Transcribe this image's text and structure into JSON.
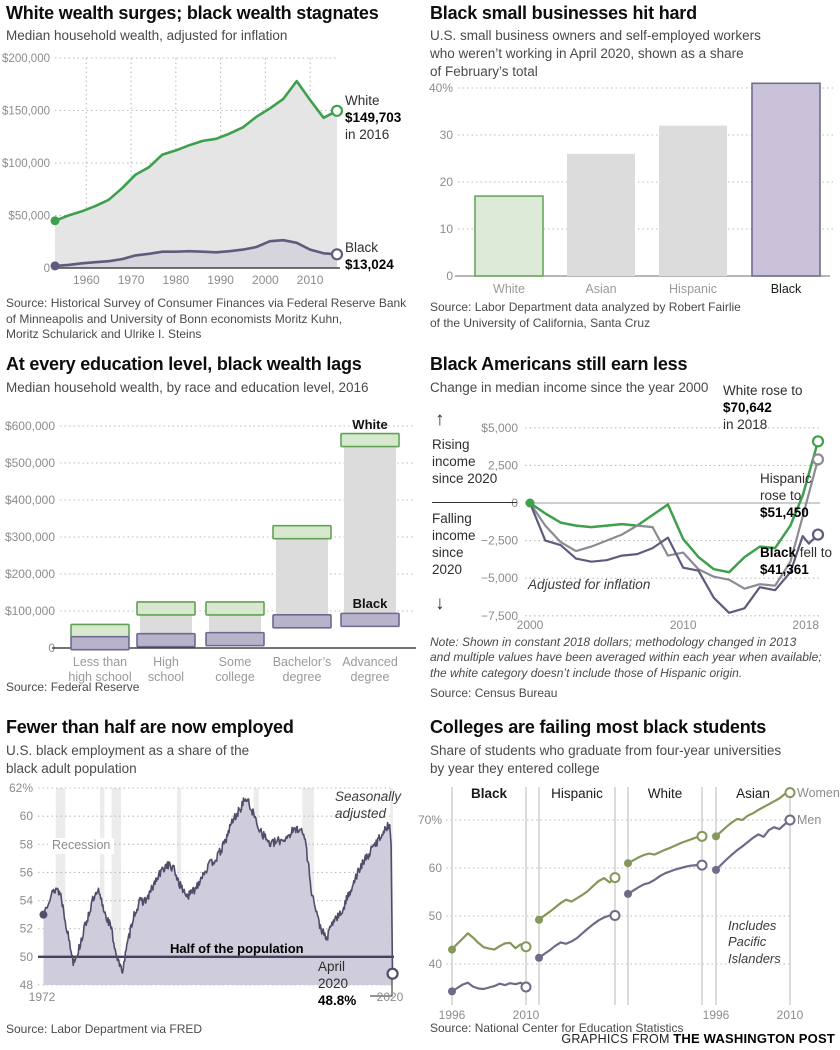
{
  "page": {
    "credit_prefix": "GRAPHICS FROM ",
    "credit_brand": "THE WASHINGTON POST"
  },
  "colors": {
    "green": "#3ea04c",
    "purple": "#5f5b7d",
    "hispanic_gray": "#8b8b94",
    "women_olive": "#85975a",
    "men_purple": "#6f6a87",
    "employment_line": "#514c69",
    "employment_fill": "#cfccdb",
    "grid": "#bdbdbd",
    "tick": "#8c8c8c",
    "bar_gray": "#dcdcdc"
  },
  "chart_data": [
    {
      "id": "wealth-over-time",
      "type": "line",
      "title": "White wealth surges; black wealth stagnates",
      "subtitle": "Median household wealth, adjusted for inflation",
      "source": "Source: Historical Survey of Consumer Finances via Federal Reserve Bank\nof Minneapolis and University of Bonn economists Moritz Kuhn,\nMoritz Schularick and Ulrike I. Steins",
      "xlim": [
        1953,
        2016
      ],
      "ylim": [
        0,
        200000
      ],
      "x_ticks": [
        1960,
        1970,
        1980,
        1990,
        2000,
        2010
      ],
      "y_ticks": [
        {
          "v": 200000,
          "label": "$200,000"
        },
        {
          "v": 150000,
          "label": "$150,000"
        },
        {
          "v": 100000,
          "label": "$100,000"
        },
        {
          "v": 50000,
          "label": "$50,000"
        },
        {
          "v": 0,
          "label": "0"
        }
      ],
      "series": [
        {
          "name": "White",
          "color": "#3ea04c",
          "area": "#e5e5e5",
          "x": [
            1953,
            1956,
            1959,
            1962,
            1965,
            1968,
            1971,
            1974,
            1977,
            1980,
            1983,
            1986,
            1989,
            1992,
            1995,
            1998,
            2001,
            2004,
            2007,
            2010,
            2013,
            2016
          ],
          "y": [
            45000,
            50000,
            54000,
            59000,
            65000,
            76000,
            89000,
            96000,
            108000,
            112000,
            117000,
            121000,
            123000,
            128000,
            134000,
            144000,
            152000,
            161000,
            178000,
            160000,
            143000,
            149703
          ]
        },
        {
          "name": "Black",
          "color": "#5f5b7d",
          "area": "#d6d4dc",
          "x": [
            1953,
            1956,
            1959,
            1962,
            1965,
            1968,
            1971,
            1974,
            1977,
            1980,
            1983,
            1986,
            1989,
            1992,
            1995,
            1998,
            2001,
            2004,
            2007,
            2010,
            2013,
            2016
          ],
          "y": [
            2000,
            3000,
            4500,
            5500,
            6500,
            8500,
            12000,
            13500,
            15500,
            15500,
            16000,
            15500,
            15000,
            16000,
            17500,
            20000,
            25500,
            26500,
            24000,
            17500,
            14000,
            13024
          ]
        }
      ],
      "end_labels": {
        "white": {
          "name": "White",
          "value": "$149,703",
          "suffix": "in 2016"
        },
        "black": {
          "name": "Black",
          "value": "$13,024"
        }
      }
    },
    {
      "id": "small-business",
      "type": "bar",
      "title": "Black small businesses hit hard",
      "subtitle": "U.S. small business owners and self-employed workers\nwho weren’t working in April 2020, shown as a share\nof February’s total",
      "source": "Source: Labor Department data analyzed by Robert Fairlie\nof the University of California, Santa Cruz",
      "ylim": [
        0,
        43
      ],
      "y_ticks": [
        {
          "v": 40,
          "label": "40%"
        },
        {
          "v": 30,
          "label": "30"
        },
        {
          "v": 20,
          "label": "20"
        },
        {
          "v": 10,
          "label": "10"
        },
        {
          "v": 0,
          "label": "0"
        }
      ],
      "categories": [
        "White",
        "Asian",
        "Hispanic",
        "Black"
      ],
      "values": [
        17,
        26,
        32,
        41
      ],
      "bar_styles": [
        {
          "fill": "#deead8",
          "stroke": "#69a65e",
          "label_color": "#9a9a9a"
        },
        {
          "fill": "#dcdcdc",
          "stroke": "none",
          "label_color": "#9a9a9a"
        },
        {
          "fill": "#dcdcdc",
          "stroke": "none",
          "label_color": "#9a9a9a"
        },
        {
          "fill": "#c9c2d8",
          "stroke": "#736c92",
          "label_color": "#1a1a1a"
        }
      ]
    },
    {
      "id": "education-wealth",
      "type": "range-bar",
      "title": "At every education level, black wealth lags",
      "subtitle": "Median household wealth, by race and education level, 2016",
      "source": "Source: Federal Reserve",
      "ylim": [
        0,
        620000
      ],
      "y_ticks": [
        {
          "v": 600000,
          "label": "$600,000"
        },
        {
          "v": 500000,
          "label": "$500,000"
        },
        {
          "v": 400000,
          "label": "$400,000"
        },
        {
          "v": 300000,
          "label": "$300,000"
        },
        {
          "v": 200000,
          "label": "$200,000"
        },
        {
          "v": 100000,
          "label": "$100,000"
        },
        {
          "v": 0,
          "label": "0"
        }
      ],
      "categories": [
        "Less than\nhigh school",
        "High\nschool",
        "Some\ncollege",
        "Bachelor’s\ndegree",
        "Advanced\ndegree"
      ],
      "series": [
        {
          "name": "White",
          "values": [
            46000,
            107000,
            107000,
            313000,
            562000
          ],
          "fill": "#d7e8cf",
          "stroke": "#61a257"
        },
        {
          "name": "Black",
          "values": [
            13000,
            21000,
            24000,
            72000,
            76000
          ],
          "fill": "#b9b2cb",
          "stroke": "#6f6890"
        }
      ],
      "legend": {
        "white": "White",
        "black": "Black"
      }
    },
    {
      "id": "income-change",
      "type": "line",
      "title": "Black Americans still earn less",
      "subtitle": "Change in median income since the year 2000",
      "note": "Note: Shown in constant 2018 dollars; methodology changed in 2013\nand multiple values have been averaged within each year when available;\nthe white category doesn’t include those of Hispanic origin.",
      "source": "Source: Census Bureau",
      "annotation": "Adjusted for inflation",
      "side": {
        "up_arrow": "↑",
        "rising": "Rising\nincome\nsince 2020",
        "falling": "Falling\nincome\nsince\n2020",
        "down_arrow": "↓"
      },
      "xlim": [
        2000,
        2018.8
      ],
      "ylim": [
        -8300,
        5800
      ],
      "x_ticks": [
        {
          "v": 2000,
          "label": "2000"
        },
        {
          "v": 2010,
          "label": "2010"
        },
        {
          "v": 2018,
          "label": "2018"
        }
      ],
      "y_ticks": [
        {
          "v": 5000,
          "label": "$5,000"
        },
        {
          "v": 2500,
          "label": "2,500"
        },
        {
          "v": 0,
          "label": "0"
        },
        {
          "v": -2500,
          "label": "−2,500"
        },
        {
          "v": -5000,
          "label": "−5,000"
        },
        {
          "v": -7500,
          "label": "−7,500"
        }
      ],
      "series": [
        {
          "name": "White",
          "color": "#3ea04c",
          "x": [
            2000,
            2001,
            2002,
            2003,
            2004,
            2005,
            2006,
            2007,
            2008,
            2009,
            2010,
            2011,
            2012,
            2013,
            2014,
            2015,
            2016,
            2017,
            2017.8,
            2018.8
          ],
          "y": [
            0,
            -700,
            -1300,
            -1500,
            -1600,
            -1500,
            -1400,
            -1500,
            -800,
            -100,
            -2400,
            -3600,
            -4400,
            -4600,
            -3600,
            -2900,
            -3000,
            -1500,
            500,
            4100
          ]
        },
        {
          "name": "Hispanic",
          "color": "#8b8b94",
          "x": [
            2000,
            2001,
            2002,
            2003,
            2004,
            2005,
            2006,
            2007,
            2008,
            2009,
            2010,
            2011,
            2012,
            2013,
            2014,
            2015,
            2016,
            2017,
            2017.8,
            2018.8
          ],
          "y": [
            0,
            -1500,
            -2600,
            -3200,
            -2900,
            -2500,
            -2100,
            -1500,
            -1600,
            -3500,
            -3300,
            -4400,
            -4900,
            -5100,
            -5700,
            -5400,
            -5500,
            -3900,
            -900,
            2900
          ]
        },
        {
          "name": "Black",
          "color": "#5f5b7d",
          "x": [
            2000,
            2001,
            2002,
            2003,
            2004,
            2005,
            2006,
            2007,
            2008,
            2009,
            2010,
            2011,
            2012,
            2013,
            2014,
            2015,
            2016,
            2017,
            2017.8,
            2018.2,
            2018.5,
            2018.8
          ],
          "y": [
            0,
            -2500,
            -2800,
            -3700,
            -3900,
            -3800,
            -3500,
            -3400,
            -3000,
            -2300,
            -4300,
            -4500,
            -6300,
            -7300,
            -7000,
            -5600,
            -5800,
            -4600,
            -2200,
            -2700,
            -2400,
            -2100
          ]
        }
      ],
      "end_labels": {
        "white": {
          "line1": "White rose to",
          "value": "$70,642",
          "line2": "in 2018"
        },
        "hispanic": {
          "line1": "Hispanic",
          "line2": "rose to",
          "value": "$51,450"
        },
        "black": {
          "bold": "Black",
          "rest": " fell to",
          "value": "$41,361"
        }
      }
    },
    {
      "id": "employment",
      "type": "area",
      "title": "Fewer than half are now employed",
      "subtitle": "U.S. black employment as a share of the\nblack adult population",
      "source": "Source: Labor Department via FRED",
      "labels": {
        "recession": "Recession",
        "seasonal": "Seasonally\nadjusted",
        "half": "Half of the population",
        "callout_line1": "April",
        "callout_line2": "2020",
        "callout_value": "48.8%"
      },
      "xlim": [
        1972,
        2020.4
      ],
      "ylim": [
        48,
        62
      ],
      "x_ticks": [
        {
          "v": 1972,
          "label": "1972"
        },
        {
          "v": 2020,
          "label": "2020"
        }
      ],
      "y_ticks": [
        {
          "v": 62,
          "label": "62%"
        },
        {
          "v": 60,
          "label": "60"
        },
        {
          "v": 58,
          "label": "58"
        },
        {
          "v": 56,
          "label": "56"
        },
        {
          "v": 54,
          "label": "54"
        },
        {
          "v": 52,
          "label": "52"
        },
        {
          "v": 50,
          "label": "50"
        },
        {
          "v": 48,
          "label": "48"
        }
      ],
      "half_value": 50,
      "recessions": [
        [
          1973.9,
          1975.2
        ],
        [
          1980.0,
          1980.6
        ],
        [
          1981.6,
          1982.9
        ],
        [
          1990.6,
          1991.2
        ],
        [
          2001.2,
          2001.9
        ],
        [
          2007.9,
          2009.5
        ],
        [
          2020.05,
          2020.4
        ]
      ],
      "noise": 0.32,
      "end": {
        "x": 2020.35,
        "y": 48.8
      },
      "keypoints": [
        [
          1972.2,
          53.0
        ],
        [
          1973,
          54.2
        ],
        [
          1974,
          54.9
        ],
        [
          1974.6,
          54.4
        ],
        [
          1975.5,
          51.8
        ],
        [
          1976.3,
          49.7
        ],
        [
          1977,
          50.4
        ],
        [
          1978,
          52.3
        ],
        [
          1979,
          54.0
        ],
        [
          1979.8,
          54.6
        ],
        [
          1980.7,
          53.1
        ],
        [
          1981.5,
          52.1
        ],
        [
          1982.2,
          50.3
        ],
        [
          1983,
          48.9
        ],
        [
          1983.8,
          50.9
        ],
        [
          1984.6,
          52.9
        ],
        [
          1985.5,
          53.9
        ],
        [
          1986.5,
          54.1
        ],
        [
          1987.5,
          55.2
        ],
        [
          1988.5,
          56.1
        ],
        [
          1989.3,
          56.6
        ],
        [
          1990.2,
          56.2
        ],
        [
          1991.2,
          54.9
        ],
        [
          1992.2,
          54.3
        ],
        [
          1993.2,
          54.9
        ],
        [
          1994.2,
          55.9
        ],
        [
          1995.2,
          56.6
        ],
        [
          1996.2,
          57.1
        ],
        [
          1997.2,
          58.1
        ],
        [
          1998.2,
          59.6
        ],
        [
          1999.2,
          60.4
        ],
        [
          2000.1,
          61.3
        ],
        [
          2000.9,
          60.5
        ],
        [
          2001.7,
          59.4
        ],
        [
          2002.5,
          58.7
        ],
        [
          2003.5,
          58.0
        ],
        [
          2004.5,
          58.2
        ],
        [
          2005.5,
          58.4
        ],
        [
          2006.5,
          58.9
        ],
        [
          2007.5,
          59.2
        ],
        [
          2008.3,
          58.4
        ],
        [
          2009.2,
          54.6
        ],
        [
          2010.2,
          52.4
        ],
        [
          2011.2,
          51.2
        ],
        [
          2012.2,
          52.6
        ],
        [
          2013.2,
          53.0
        ],
        [
          2014.2,
          54.3
        ],
        [
          2015.2,
          55.6
        ],
        [
          2016.2,
          56.6
        ],
        [
          2017.2,
          57.4
        ],
        [
          2018.2,
          58.2
        ],
        [
          2019.2,
          59.0
        ],
        [
          2019.95,
          59.4
        ],
        [
          2020.15,
          58.0
        ],
        [
          2020.35,
          48.8
        ]
      ]
    },
    {
      "id": "graduation",
      "type": "line",
      "title": "Colleges are failing most black students",
      "subtitle": "Share of students who graduate from four-year universities\nby year they entered college",
      "source": "Source: National Center for Education Statistics",
      "annotation": "Includes\nPacific\nIslanders",
      "x_range": [
        1996,
        2010
      ],
      "x_tick_labels": [
        "1996",
        "2010"
      ],
      "y_ticks": [
        {
          "v": 70,
          "label": "70%"
        },
        {
          "v": 60,
          "label": "60"
        },
        {
          "v": 50,
          "label": "50"
        },
        {
          "v": 40,
          "label": "40"
        }
      ],
      "legend": {
        "women": "Women",
        "men": "Men"
      },
      "colors": {
        "women": "#85975a",
        "men": "#6f6a87"
      },
      "panels": [
        {
          "label": "Black",
          "bold": true,
          "women": [
            43.0,
            44.2,
            45.3,
            46.4,
            45.5,
            44.4,
            43.5,
            43.2,
            43.0,
            43.7,
            44.3,
            44.4,
            43.3,
            44.1,
            43.6
          ],
          "men": [
            34.3,
            35.0,
            35.7,
            36.1,
            35.3,
            34.9,
            34.8,
            35.1,
            35.4,
            35.9,
            35.6,
            36.0,
            35.8,
            36.1,
            35.2
          ]
        },
        {
          "label": "Hispanic",
          "bold": false,
          "women": [
            49.2,
            50.1,
            50.9,
            51.8,
            52.7,
            53.4,
            53.0,
            53.7,
            54.4,
            55.2,
            56.3,
            57.3,
            57.9,
            57.0,
            58.0
          ],
          "men": [
            41.3,
            42.1,
            42.9,
            43.8,
            44.5,
            44.2,
            44.7,
            45.4,
            46.4,
            47.4,
            48.3,
            49.1,
            49.7,
            50.1,
            50.1
          ]
        },
        {
          "label": "White",
          "bold": false,
          "women": [
            61.0,
            61.6,
            62.2,
            62.7,
            63.0,
            62.8,
            63.3,
            63.8,
            64.2,
            64.7,
            65.2,
            65.6,
            66.0,
            66.4,
            66.6
          ],
          "men": [
            54.6,
            55.3,
            56.0,
            56.6,
            56.9,
            57.5,
            58.3,
            58.9,
            59.3,
            59.7,
            60.0,
            60.3,
            60.5,
            60.6,
            60.6
          ]
        },
        {
          "label": "Asian",
          "bold": false,
          "women": [
            66.6,
            67.6,
            68.6,
            69.5,
            70.2,
            70.0,
            70.9,
            71.4,
            72.1,
            72.7,
            73.3,
            73.9,
            74.5,
            75.4,
            75.7
          ],
          "men": [
            59.6,
            60.7,
            61.8,
            62.8,
            63.7,
            64.5,
            65.4,
            66.3,
            67.0,
            66.5,
            67.9,
            68.5,
            68.1,
            69.1,
            70.0
          ]
        }
      ]
    }
  ]
}
